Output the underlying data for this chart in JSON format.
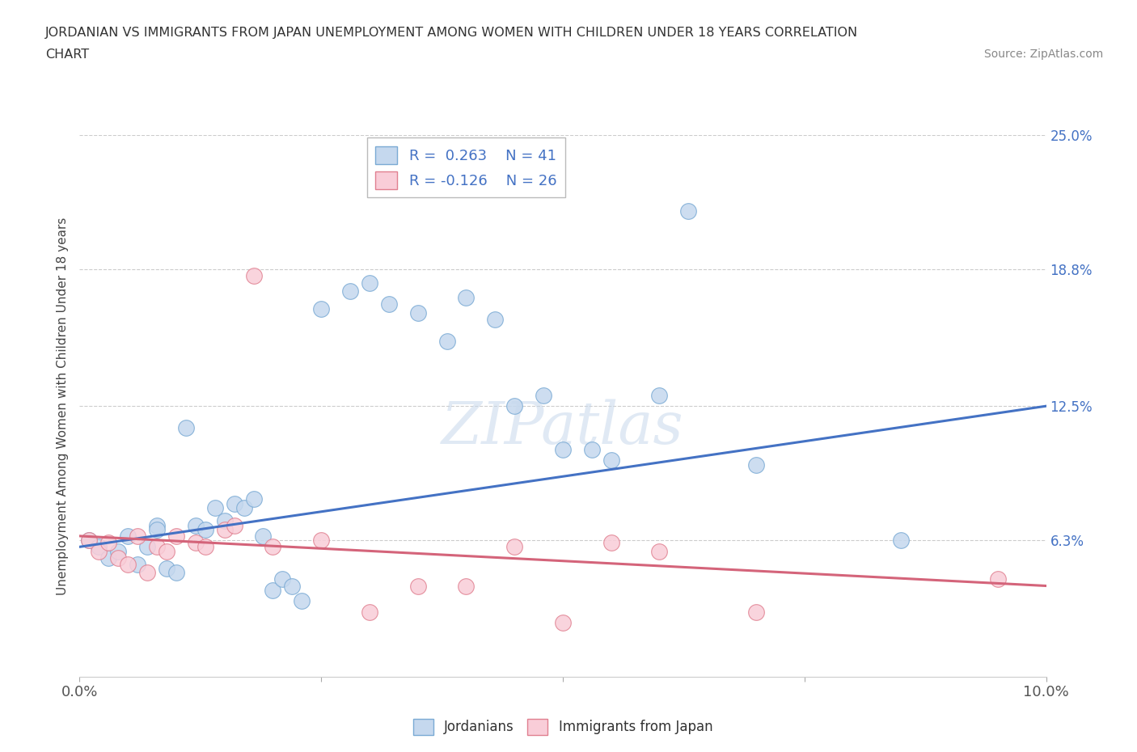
{
  "title_line1": "JORDANIAN VS IMMIGRANTS FROM JAPAN UNEMPLOYMENT AMONG WOMEN WITH CHILDREN UNDER 18 YEARS CORRELATION",
  "title_line2": "CHART",
  "source": "Source: ZipAtlas.com",
  "ylabel": "Unemployment Among Women with Children Under 18 years",
  "xlim": [
    0.0,
    0.1
  ],
  "ylim": [
    -0.005,
    0.265
  ],
  "plot_ylim": [
    0.0,
    0.25
  ],
  "jordanians_R": 0.263,
  "jordanians_N": 41,
  "japan_R": -0.126,
  "japan_N": 26,
  "blue_line_color": "#4472c4",
  "pink_line_color": "#d4647a",
  "blue_scatter_fill": "#c5d8ee",
  "blue_scatter_edge": "#7aaad4",
  "pink_scatter_fill": "#f9cdd8",
  "pink_scatter_edge": "#e08090",
  "jordanians_x": [
    0.001,
    0.002,
    0.003,
    0.004,
    0.005,
    0.006,
    0.007,
    0.008,
    0.008,
    0.009,
    0.01,
    0.011,
    0.012,
    0.013,
    0.014,
    0.015,
    0.016,
    0.017,
    0.018,
    0.019,
    0.02,
    0.021,
    0.022,
    0.023,
    0.025,
    0.028,
    0.03,
    0.032,
    0.035,
    0.038,
    0.04,
    0.043,
    0.045,
    0.048,
    0.05,
    0.053,
    0.055,
    0.06,
    0.063,
    0.07,
    0.085
  ],
  "jordanians_y": [
    0.063,
    0.06,
    0.055,
    0.058,
    0.065,
    0.052,
    0.06,
    0.07,
    0.068,
    0.05,
    0.048,
    0.115,
    0.07,
    0.068,
    0.078,
    0.072,
    0.08,
    0.078,
    0.082,
    0.065,
    0.04,
    0.045,
    0.042,
    0.035,
    0.17,
    0.178,
    0.182,
    0.172,
    0.168,
    0.155,
    0.175,
    0.165,
    0.125,
    0.13,
    0.105,
    0.105,
    0.1,
    0.13,
    0.215,
    0.098,
    0.063
  ],
  "japan_x": [
    0.001,
    0.002,
    0.003,
    0.004,
    0.005,
    0.006,
    0.007,
    0.008,
    0.009,
    0.01,
    0.012,
    0.013,
    0.015,
    0.016,
    0.018,
    0.02,
    0.025,
    0.03,
    0.035,
    0.04,
    0.045,
    0.05,
    0.055,
    0.06,
    0.07,
    0.095
  ],
  "japan_y": [
    0.063,
    0.058,
    0.062,
    0.055,
    0.052,
    0.065,
    0.048,
    0.06,
    0.058,
    0.065,
    0.062,
    0.06,
    0.068,
    0.07,
    0.185,
    0.06,
    0.063,
    0.03,
    0.042,
    0.042,
    0.06,
    0.025,
    0.062,
    0.058,
    0.03,
    0.045
  ],
  "blue_trendline_x": [
    0.0,
    0.1
  ],
  "blue_trendline_y": [
    0.06,
    0.125
  ],
  "pink_trendline_x": [
    0.0,
    0.1
  ],
  "pink_trendline_y": [
    0.065,
    0.042
  ]
}
